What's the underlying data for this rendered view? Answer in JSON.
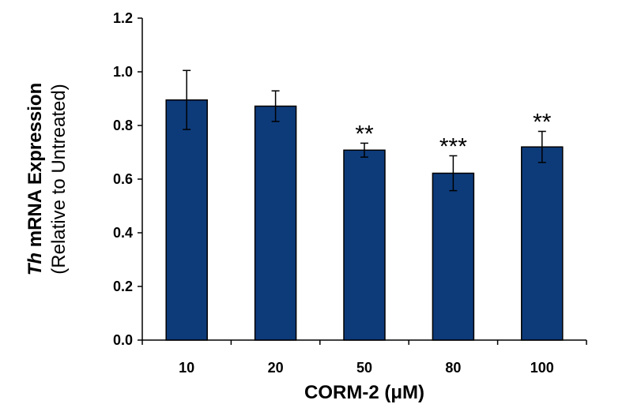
{
  "chart_data": {
    "type": "bar",
    "categories": [
      "10",
      "20",
      "50",
      "80",
      "100"
    ],
    "values": [
      0.895,
      0.872,
      0.708,
      0.622,
      0.72
    ],
    "errors": [
      0.11,
      0.057,
      0.026,
      0.065,
      0.058
    ],
    "significance": [
      "",
      "",
      "**",
      "***",
      "**"
    ],
    "xlabel": "CORM-2 (μM)",
    "ylabel_italic": "Th",
    "ylabel_main": " mRNA Expression",
    "ylabel_sub": "(Relative to Untreated)",
    "ylim": [
      0,
      1.2
    ],
    "yticks": [
      "0.0",
      "0.2",
      "0.4",
      "0.6",
      "0.8",
      "1.0",
      "1.2"
    ],
    "bar_color": "#0d3b7a",
    "grid": false,
    "legend": "none"
  }
}
